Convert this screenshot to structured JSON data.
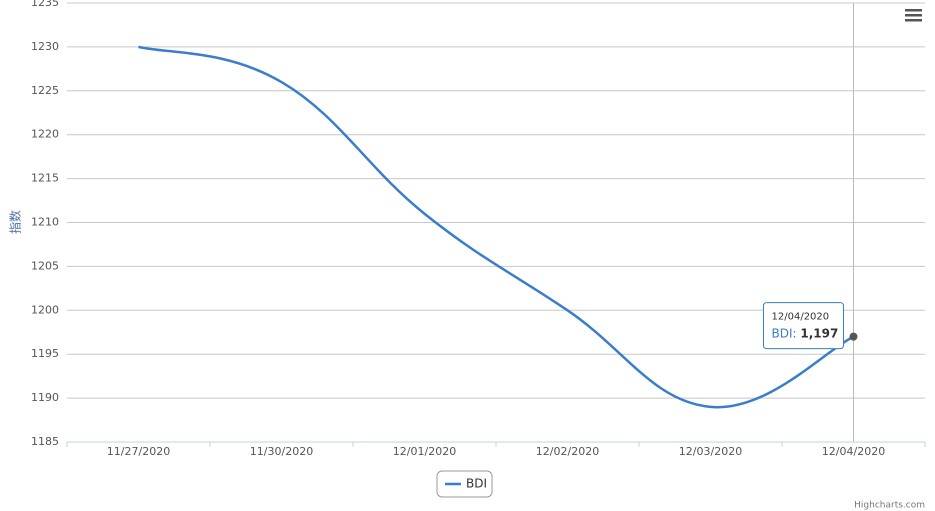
{
  "chart_data": {
    "type": "line",
    "y_axis_title": "指数",
    "categories": [
      "11/27/2020",
      "11/30/2020",
      "12/01/2020",
      "12/02/2020",
      "12/03/2020",
      "12/04/2020"
    ],
    "series": [
      {
        "name": "BDI",
        "color": "#3a7dcc",
        "values": [
          1230,
          1226,
          1211,
          1200,
          1189,
          1197
        ],
        "value_labels": [
          null,
          null,
          null,
          null,
          null,
          "1,197"
        ]
      }
    ],
    "ylim": [
      1185,
      1235
    ],
    "yticks": [
      1185,
      1190,
      1195,
      1200,
      1205,
      1210,
      1215,
      1220,
      1225,
      1230,
      1235
    ],
    "grid": true,
    "legend": "bottom",
    "credits": "Highcharts.com"
  }
}
